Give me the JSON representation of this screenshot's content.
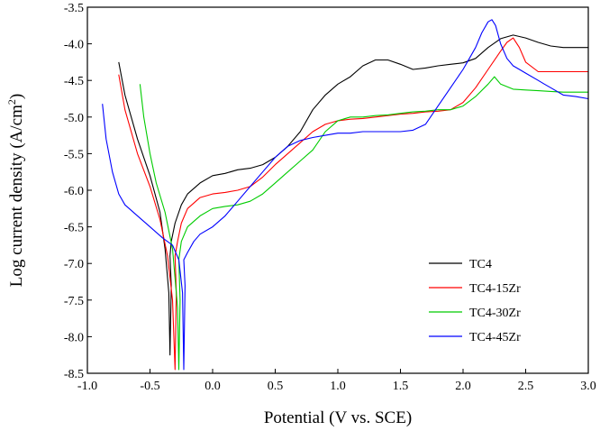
{
  "chart_data": {
    "type": "line",
    "xlabel": "Potential (V vs. SCE)",
    "ylabel_main": "Log current density (A/cm",
    "ylabel_sup": "2",
    "ylabel_close": ")",
    "xlim": [
      -1.0,
      3.0
    ],
    "ylim": [
      -8.5,
      -3.5
    ],
    "x_ticks": [
      "-1.0",
      "-0.5",
      "0.0",
      "0.5",
      "1.0",
      "1.5",
      "2.0",
      "2.5",
      "3.0"
    ],
    "y_ticks": [
      "-3.5",
      "-4.0",
      "-4.5",
      "-5.0",
      "-5.5",
      "-6.0",
      "-6.5",
      "-7.0",
      "-7.5",
      "-8.0",
      "-8.5"
    ],
    "grid": false,
    "legend_position": "bottom-right",
    "series": [
      {
        "name": "TC4",
        "color": "#000000",
        "x": [
          -0.75,
          -0.7,
          -0.6,
          -0.5,
          -0.42,
          -0.38,
          -0.35,
          -0.34,
          -0.33,
          -0.34,
          -0.33,
          -0.3,
          -0.25,
          -0.2,
          -0.1,
          0.0,
          0.1,
          0.2,
          0.3,
          0.4,
          0.5,
          0.6,
          0.7,
          0.8,
          0.9,
          1.0,
          1.1,
          1.2,
          1.3,
          1.4,
          1.5,
          1.6,
          1.7,
          1.8,
          1.9,
          2.0,
          2.1,
          2.2,
          2.3,
          2.4,
          2.5,
          2.6,
          2.7,
          2.8,
          2.9,
          3.0
        ],
        "y": [
          -4.25,
          -4.7,
          -5.3,
          -5.8,
          -6.3,
          -6.8,
          -7.4,
          -8.25,
          -7.3,
          -6.9,
          -6.7,
          -6.45,
          -6.2,
          -6.05,
          -5.9,
          -5.8,
          -5.77,
          -5.72,
          -5.7,
          -5.65,
          -5.55,
          -5.4,
          -5.2,
          -4.9,
          -4.7,
          -4.55,
          -4.45,
          -4.3,
          -4.22,
          -4.22,
          -4.28,
          -4.35,
          -4.33,
          -4.3,
          -4.28,
          -4.26,
          -4.2,
          -4.05,
          -3.93,
          -3.88,
          -3.92,
          -3.98,
          -4.03,
          -4.05,
          -4.05,
          -4.05
        ]
      },
      {
        "name": "TC4-15Zr",
        "color": "#ff0000",
        "x": [
          -0.75,
          -0.7,
          -0.6,
          -0.5,
          -0.42,
          -0.36,
          -0.32,
          -0.3,
          -0.29,
          -0.3,
          -0.28,
          -0.25,
          -0.2,
          -0.1,
          0.0,
          0.1,
          0.2,
          0.3,
          0.4,
          0.5,
          0.6,
          0.7,
          0.8,
          0.9,
          1.0,
          1.1,
          1.2,
          1.3,
          1.4,
          1.5,
          1.6,
          1.7,
          1.8,
          1.9,
          2.0,
          2.1,
          2.2,
          2.3,
          2.35,
          2.4,
          2.45,
          2.5,
          2.6,
          2.7,
          2.8,
          2.9,
          3.0
        ],
        "y": [
          -4.42,
          -4.9,
          -5.5,
          -5.95,
          -6.4,
          -6.9,
          -7.5,
          -8.45,
          -7.4,
          -6.9,
          -6.7,
          -6.45,
          -6.25,
          -6.1,
          -6.05,
          -6.03,
          -6.0,
          -5.95,
          -5.82,
          -5.65,
          -5.5,
          -5.35,
          -5.2,
          -5.1,
          -5.05,
          -5.03,
          -5.02,
          -5.0,
          -4.98,
          -4.96,
          -4.95,
          -4.93,
          -4.92,
          -4.9,
          -4.8,
          -4.6,
          -4.35,
          -4.1,
          -3.98,
          -3.92,
          -4.05,
          -4.25,
          -4.38,
          -4.38,
          -4.38,
          -4.38,
          -4.38
        ]
      },
      {
        "name": "TC4-30Zr",
        "color": "#00cc00",
        "x": [
          -0.58,
          -0.55,
          -0.5,
          -0.45,
          -0.38,
          -0.32,
          -0.28,
          -0.27,
          -0.26,
          -0.27,
          -0.25,
          -0.2,
          -0.1,
          0.0,
          0.1,
          0.2,
          0.3,
          0.4,
          0.5,
          0.6,
          0.7,
          0.8,
          0.9,
          1.0,
          1.1,
          1.2,
          1.3,
          1.4,
          1.5,
          1.6,
          1.7,
          1.8,
          1.9,
          2.0,
          2.1,
          2.2,
          2.25,
          2.3,
          2.4,
          2.5,
          2.6,
          2.7,
          2.8,
          2.9,
          3.0
        ],
        "y": [
          -4.55,
          -5.0,
          -5.5,
          -5.9,
          -6.3,
          -6.8,
          -7.6,
          -8.45,
          -7.5,
          -6.95,
          -6.7,
          -6.5,
          -6.35,
          -6.25,
          -6.22,
          -6.2,
          -6.15,
          -6.05,
          -5.9,
          -5.75,
          -5.6,
          -5.45,
          -5.2,
          -5.05,
          -5.0,
          -5.0,
          -4.98,
          -4.97,
          -4.95,
          -4.93,
          -4.92,
          -4.9,
          -4.9,
          -4.85,
          -4.72,
          -4.55,
          -4.45,
          -4.55,
          -4.62,
          -4.63,
          -4.64,
          -4.65,
          -4.66,
          -4.66,
          -4.66
        ]
      },
      {
        "name": "TC4-45Zr",
        "color": "#0000ff",
        "x": [
          -0.88,
          -0.85,
          -0.8,
          -0.75,
          -0.7,
          -0.6,
          -0.5,
          -0.4,
          -0.32,
          -0.27,
          -0.24,
          -0.23,
          -0.22,
          -0.23,
          -0.2,
          -0.15,
          -0.1,
          0.0,
          0.1,
          0.2,
          0.3,
          0.4,
          0.5,
          0.6,
          0.7,
          0.8,
          0.9,
          1.0,
          1.1,
          1.2,
          1.3,
          1.4,
          1.5,
          1.6,
          1.7,
          1.8,
          1.9,
          2.0,
          2.05,
          2.1,
          2.15,
          2.2,
          2.23,
          2.26,
          2.3,
          2.35,
          2.4,
          2.45,
          2.5,
          2.6,
          2.65,
          2.7,
          2.8,
          2.9,
          3.0
        ],
        "y": [
          -4.82,
          -5.3,
          -5.75,
          -6.05,
          -6.2,
          -6.35,
          -6.5,
          -6.65,
          -6.75,
          -6.95,
          -7.4,
          -8.45,
          -7.3,
          -6.95,
          -6.85,
          -6.7,
          -6.6,
          -6.5,
          -6.35,
          -6.15,
          -5.95,
          -5.75,
          -5.55,
          -5.4,
          -5.32,
          -5.28,
          -5.25,
          -5.22,
          -5.22,
          -5.2,
          -5.2,
          -5.2,
          -5.2,
          -5.18,
          -5.1,
          -4.85,
          -4.6,
          -4.35,
          -4.2,
          -4.05,
          -3.85,
          -3.7,
          -3.67,
          -3.75,
          -4.0,
          -4.2,
          -4.3,
          -4.35,
          -4.4,
          -4.5,
          -4.55,
          -4.6,
          -4.7,
          -4.72,
          -4.75
        ]
      }
    ]
  }
}
